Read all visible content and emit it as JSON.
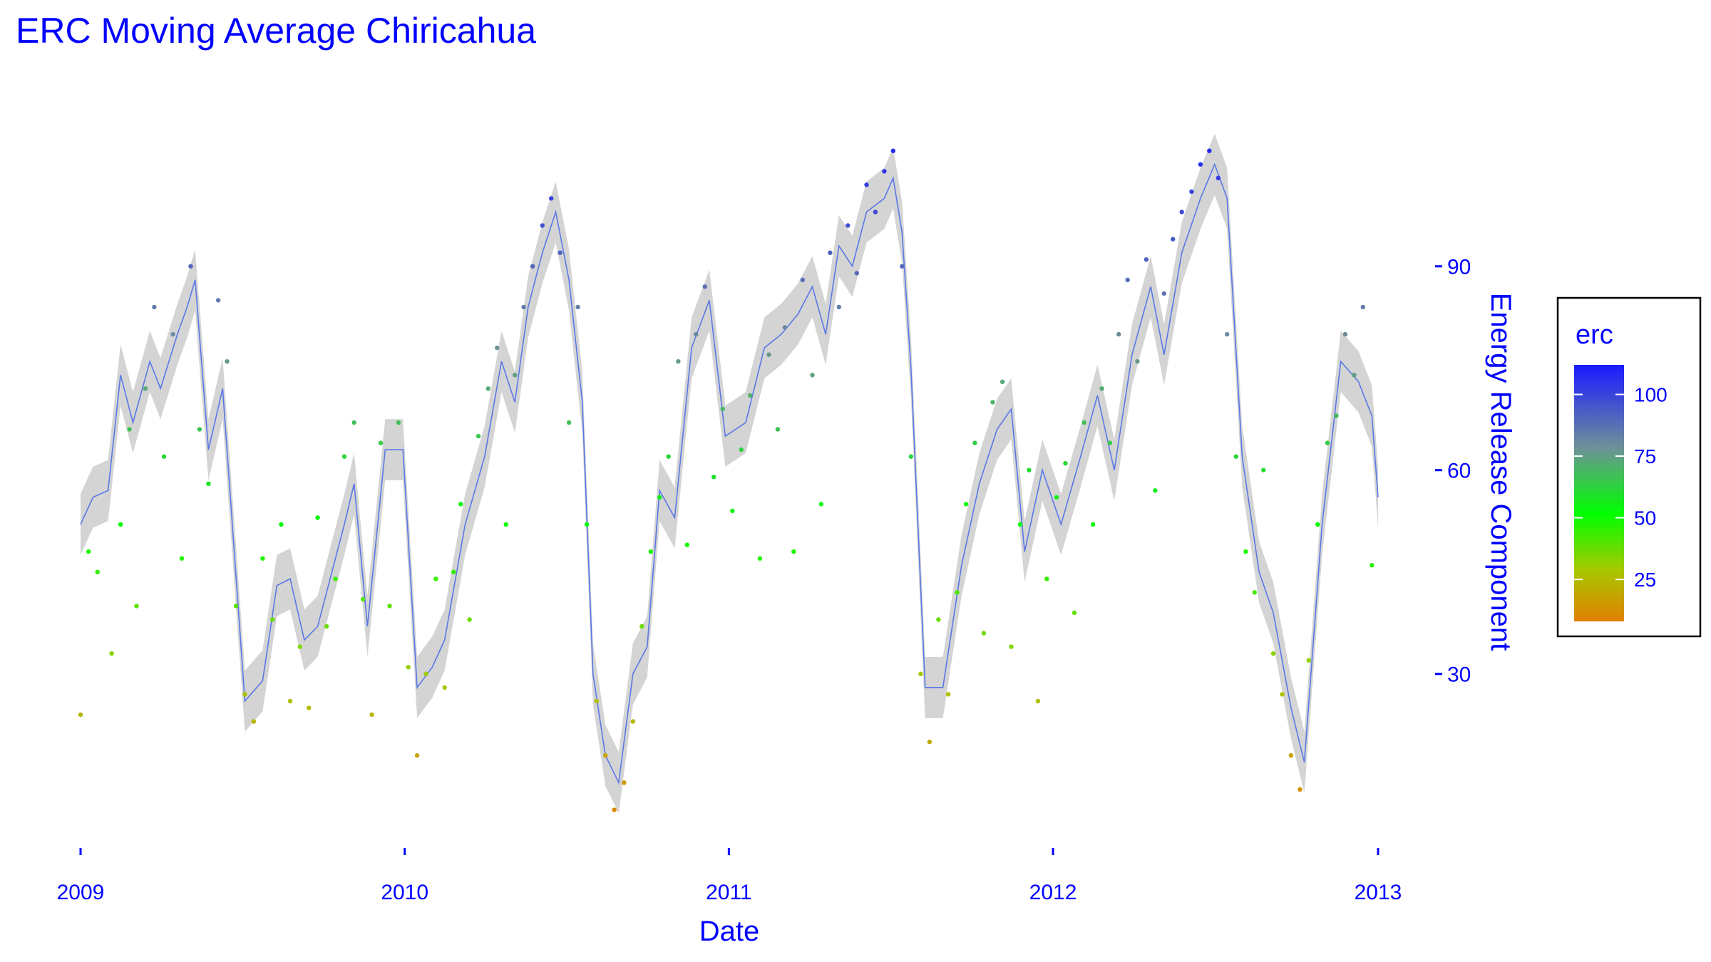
{
  "chart_data": {
    "type": "scatter",
    "title": "ERC Moving Average Chiricahua",
    "xlabel": "Date",
    "ylabel": "Energy Release Component",
    "xlim": [
      "2009-01-01",
      "2013-01-01"
    ],
    "ylim": [
      7,
      112
    ],
    "x_ticks": [
      "2009",
      "2010",
      "2011",
      "2012",
      "2013"
    ],
    "y_ticks": [
      30,
      60,
      90
    ],
    "grid": false,
    "legend": {
      "title": "erc",
      "placement": "right",
      "ticks": [
        25,
        50,
        75,
        100
      ],
      "range": [
        8,
        112
      ],
      "colors": [
        "#e08000",
        "#a8c800",
        "#00ff00",
        "#6f8f9a",
        "#1a1aff"
      ]
    },
    "colors": {
      "text": "#0000ff",
      "line": "#5a78e6",
      "ribbon": "#d4d4d4"
    },
    "series": [
      {
        "kind": "moving-average",
        "points": [
          [
            "2009-01-01",
            52
          ],
          [
            "2009-01-15",
            56
          ],
          [
            "2009-02-01",
            57
          ],
          [
            "2009-02-15",
            74
          ],
          [
            "2009-03-01",
            67
          ],
          [
            "2009-03-20",
            76
          ],
          [
            "2009-04-01",
            72
          ],
          [
            "2009-04-20",
            80
          ],
          [
            "2009-05-01",
            84
          ],
          [
            "2009-05-10",
            88
          ],
          [
            "2009-05-25",
            63
          ],
          [
            "2009-06-10",
            72
          ],
          [
            "2009-07-05",
            26
          ],
          [
            "2009-07-25",
            29
          ],
          [
            "2009-08-10",
            43
          ],
          [
            "2009-08-25",
            44
          ],
          [
            "2009-09-10",
            35
          ],
          [
            "2009-09-25",
            37
          ],
          [
            "2009-10-25",
            52
          ],
          [
            "2009-11-05",
            58
          ],
          [
            "2009-11-20",
            37
          ],
          [
            "2009-12-10",
            63
          ],
          [
            "2009-12-30",
            63
          ],
          [
            "2010-01-15",
            28
          ],
          [
            "2010-02-01",
            31
          ],
          [
            "2010-02-15",
            35
          ],
          [
            "2010-03-10",
            52
          ],
          [
            "2010-04-01",
            62
          ],
          [
            "2010-04-20",
            76
          ],
          [
            "2010-05-05",
            70
          ],
          [
            "2010-05-20",
            84
          ],
          [
            "2010-06-05",
            92
          ],
          [
            "2010-06-20",
            98
          ],
          [
            "2010-07-05",
            88
          ],
          [
            "2010-07-20",
            70
          ],
          [
            "2010-08-01",
            30
          ],
          [
            "2010-08-15",
            18
          ],
          [
            "2010-08-30",
            14
          ],
          [
            "2010-09-15",
            30
          ],
          [
            "2010-10-01",
            34
          ],
          [
            "2010-10-15",
            57
          ],
          [
            "2010-11-01",
            53
          ],
          [
            "2010-11-20",
            78
          ],
          [
            "2010-12-10",
            85
          ],
          [
            "2010-12-28",
            65
          ],
          [
            "2011-01-20",
            67
          ],
          [
            "2011-02-10",
            78
          ],
          [
            "2011-03-01",
            80
          ],
          [
            "2011-03-20",
            83
          ],
          [
            "2011-04-05",
            87
          ],
          [
            "2011-04-20",
            80
          ],
          [
            "2011-05-05",
            93
          ],
          [
            "2011-05-20",
            90
          ],
          [
            "2011-06-05",
            98
          ],
          [
            "2011-06-25",
            100
          ],
          [
            "2011-07-05",
            103
          ],
          [
            "2011-07-15",
            95
          ],
          [
            "2011-07-25",
            75
          ],
          [
            "2011-08-10",
            28
          ],
          [
            "2011-08-30",
            28
          ],
          [
            "2011-09-20",
            46
          ],
          [
            "2011-10-10",
            58
          ],
          [
            "2011-10-30",
            66
          ],
          [
            "2011-11-15",
            69
          ],
          [
            "2011-11-30",
            48
          ],
          [
            "2011-12-20",
            60
          ],
          [
            "2012-01-10",
            52
          ],
          [
            "2012-02-01",
            62
          ],
          [
            "2012-02-20",
            71
          ],
          [
            "2012-03-10",
            60
          ],
          [
            "2012-03-30",
            77
          ],
          [
            "2012-04-20",
            87
          ],
          [
            "2012-05-05",
            77
          ],
          [
            "2012-05-25",
            92
          ],
          [
            "2012-06-15",
            100
          ],
          [
            "2012-07-01",
            105
          ],
          [
            "2012-07-15",
            100
          ],
          [
            "2012-08-01",
            62
          ],
          [
            "2012-08-20",
            45
          ],
          [
            "2012-09-05",
            39
          ],
          [
            "2012-09-25",
            25
          ],
          [
            "2012-10-10",
            17
          ],
          [
            "2012-10-30",
            52
          ],
          [
            "2012-11-20",
            76
          ],
          [
            "2012-12-10",
            73
          ],
          [
            "2012-12-25",
            68
          ],
          [
            "2013-01-01",
            56
          ]
        ]
      },
      {
        "kind": "daily-erc",
        "points": [
          [
            "2009-01-01",
            24
          ],
          [
            "2009-01-10",
            48
          ],
          [
            "2009-01-20",
            45
          ],
          [
            "2009-02-05",
            33
          ],
          [
            "2009-02-15",
            52
          ],
          [
            "2009-02-25",
            66
          ],
          [
            "2009-03-05",
            40
          ],
          [
            "2009-03-15",
            72
          ],
          [
            "2009-03-25",
            84
          ],
          [
            "2009-04-05",
            62
          ],
          [
            "2009-04-15",
            80
          ],
          [
            "2009-04-25",
            47
          ],
          [
            "2009-05-05",
            90
          ],
          [
            "2009-05-15",
            66
          ],
          [
            "2009-05-25",
            58
          ],
          [
            "2009-06-05",
            85
          ],
          [
            "2009-06-15",
            76
          ],
          [
            "2009-06-25",
            40
          ],
          [
            "2009-07-05",
            27
          ],
          [
            "2009-07-15",
            23
          ],
          [
            "2009-07-25",
            47
          ],
          [
            "2009-08-05",
            38
          ],
          [
            "2009-08-15",
            52
          ],
          [
            "2009-08-25",
            26
          ],
          [
            "2009-09-05",
            34
          ],
          [
            "2009-09-15",
            25
          ],
          [
            "2009-09-25",
            53
          ],
          [
            "2009-10-05",
            37
          ],
          [
            "2009-10-15",
            44
          ],
          [
            "2009-10-25",
            62
          ],
          [
            "2009-11-05",
            67
          ],
          [
            "2009-11-15",
            41
          ],
          [
            "2009-11-25",
            24
          ],
          [
            "2009-12-05",
            64
          ],
          [
            "2009-12-15",
            40
          ],
          [
            "2009-12-25",
            67
          ],
          [
            "2010-01-05",
            31
          ],
          [
            "2010-01-15",
            18
          ],
          [
            "2010-01-25",
            30
          ],
          [
            "2010-02-05",
            44
          ],
          [
            "2010-02-15",
            28
          ],
          [
            "2010-02-25",
            45
          ],
          [
            "2010-03-05",
            55
          ],
          [
            "2010-03-15",
            38
          ],
          [
            "2010-03-25",
            65
          ],
          [
            "2010-04-05",
            72
          ],
          [
            "2010-04-15",
            78
          ],
          [
            "2010-04-25",
            52
          ],
          [
            "2010-05-05",
            74
          ],
          [
            "2010-05-15",
            84
          ],
          [
            "2010-05-25",
            90
          ],
          [
            "2010-06-05",
            96
          ],
          [
            "2010-06-15",
            100
          ],
          [
            "2010-06-25",
            92
          ],
          [
            "2010-07-05",
            67
          ],
          [
            "2010-07-15",
            84
          ],
          [
            "2010-07-25",
            52
          ],
          [
            "2010-08-05",
            26
          ],
          [
            "2010-08-15",
            18
          ],
          [
            "2010-08-25",
            10
          ],
          [
            "2010-09-05",
            14
          ],
          [
            "2010-09-15",
            23
          ],
          [
            "2010-09-25",
            37
          ],
          [
            "2010-10-05",
            48
          ],
          [
            "2010-10-15",
            56
          ],
          [
            "2010-10-25",
            62
          ],
          [
            "2010-11-05",
            76
          ],
          [
            "2010-11-15",
            49
          ],
          [
            "2010-11-25",
            80
          ],
          [
            "2010-12-05",
            87
          ],
          [
            "2010-12-15",
            59
          ],
          [
            "2010-12-25",
            69
          ],
          [
            "2011-01-05",
            54
          ],
          [
            "2011-01-15",
            63
          ],
          [
            "2011-01-25",
            71
          ],
          [
            "2011-02-05",
            47
          ],
          [
            "2011-02-15",
            77
          ],
          [
            "2011-02-25",
            66
          ],
          [
            "2011-03-05",
            81
          ],
          [
            "2011-03-15",
            48
          ],
          [
            "2011-03-25",
            88
          ],
          [
            "2011-04-05",
            74
          ],
          [
            "2011-04-15",
            55
          ],
          [
            "2011-04-25",
            92
          ],
          [
            "2011-05-05",
            84
          ],
          [
            "2011-05-15",
            96
          ],
          [
            "2011-05-25",
            89
          ],
          [
            "2011-06-05",
            102
          ],
          [
            "2011-06-15",
            98
          ],
          [
            "2011-06-25",
            104
          ],
          [
            "2011-07-05",
            107
          ],
          [
            "2011-07-15",
            90
          ],
          [
            "2011-07-25",
            62
          ],
          [
            "2011-08-05",
            30
          ],
          [
            "2011-08-15",
            20
          ],
          [
            "2011-08-25",
            38
          ],
          [
            "2011-09-05",
            27
          ],
          [
            "2011-09-15",
            42
          ],
          [
            "2011-09-25",
            55
          ],
          [
            "2011-10-05",
            64
          ],
          [
            "2011-10-15",
            36
          ],
          [
            "2011-10-25",
            70
          ],
          [
            "2011-11-05",
            73
          ],
          [
            "2011-11-15",
            34
          ],
          [
            "2011-11-25",
            52
          ],
          [
            "2011-12-05",
            60
          ],
          [
            "2011-12-15",
            26
          ],
          [
            "2011-12-25",
            44
          ],
          [
            "2012-01-05",
            56
          ],
          [
            "2012-01-15",
            61
          ],
          [
            "2012-01-25",
            39
          ],
          [
            "2012-02-05",
            67
          ],
          [
            "2012-02-15",
            52
          ],
          [
            "2012-02-25",
            72
          ],
          [
            "2012-03-05",
            64
          ],
          [
            "2012-03-15",
            80
          ],
          [
            "2012-03-25",
            88
          ],
          [
            "2012-04-05",
            76
          ],
          [
            "2012-04-15",
            91
          ],
          [
            "2012-04-25",
            57
          ],
          [
            "2012-05-05",
            86
          ],
          [
            "2012-05-15",
            94
          ],
          [
            "2012-05-25",
            98
          ],
          [
            "2012-06-05",
            101
          ],
          [
            "2012-06-15",
            105
          ],
          [
            "2012-06-25",
            107
          ],
          [
            "2012-07-05",
            103
          ],
          [
            "2012-07-15",
            80
          ],
          [
            "2012-07-25",
            62
          ],
          [
            "2012-08-05",
            48
          ],
          [
            "2012-08-15",
            42
          ],
          [
            "2012-08-25",
            60
          ],
          [
            "2012-09-05",
            33
          ],
          [
            "2012-09-15",
            27
          ],
          [
            "2012-09-25",
            18
          ],
          [
            "2012-10-05",
            13
          ],
          [
            "2012-10-15",
            32
          ],
          [
            "2012-10-25",
            52
          ],
          [
            "2012-11-05",
            64
          ],
          [
            "2012-11-15",
            68
          ],
          [
            "2012-11-25",
            80
          ],
          [
            "2012-12-05",
            74
          ],
          [
            "2012-12-15",
            84
          ],
          [
            "2012-12-25",
            46
          ]
        ]
      }
    ]
  }
}
